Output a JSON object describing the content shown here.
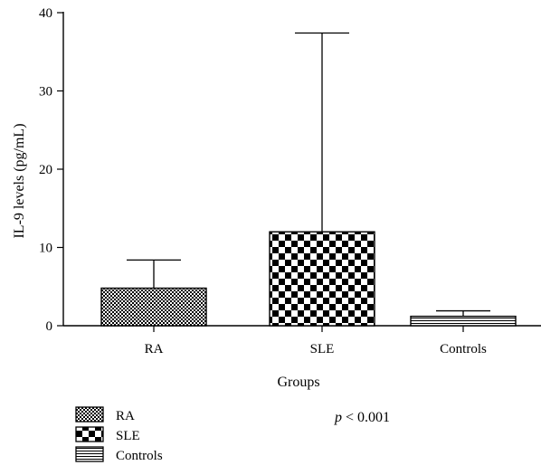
{
  "chart_data": {
    "type": "bar",
    "categories": [
      "RA",
      "SLE",
      "Controls"
    ],
    "values": [
      4.8,
      12.0,
      1.2
    ],
    "error_upper": [
      8.4,
      37.4,
      1.9
    ],
    "patterns": [
      "fine-check",
      "checker",
      "horizontal-lines"
    ],
    "xlabel": "Groups",
    "ylabel": "IL-9 levels (pg/mL)",
    "ylim": [
      0,
      40
    ],
    "yticks": [
      0,
      10,
      20,
      30,
      40
    ],
    "grid": false,
    "legend_position": "bottom-left",
    "legend": [
      "RA",
      "SLE",
      "Controls"
    ],
    "annotation": {
      "italic": "p",
      "text": " < 0.001"
    }
  }
}
